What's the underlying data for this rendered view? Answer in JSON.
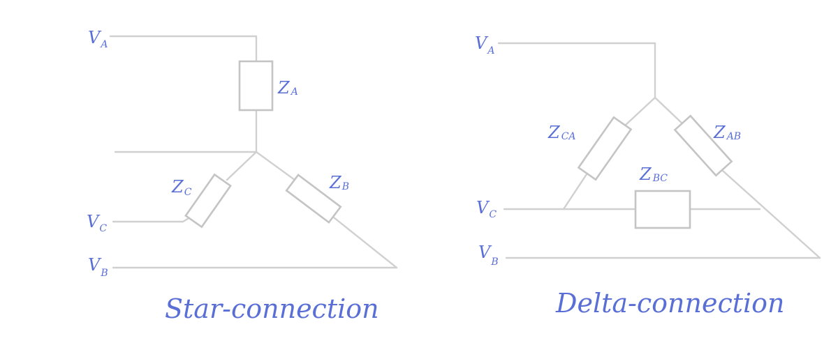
{
  "star": {
    "label_va": "V",
    "label_va_sub": "A",
    "label_vc": "V",
    "label_vc_sub": "C",
    "label_vb": "V",
    "label_vb_sub": "B",
    "label_za": "Z",
    "label_za_sub": "A",
    "label_zb": "Z",
    "label_zb_sub": "B",
    "label_zc": "Z",
    "label_zc_sub": "C",
    "caption": "Star-connection"
  },
  "delta": {
    "label_va": "V",
    "label_va_sub": "A",
    "label_vc": "V",
    "label_vc_sub": "C",
    "label_vb": "V",
    "label_vb_sub": "B",
    "label_zca": "Z",
    "label_zca_sub": "CA",
    "label_zab": "Z",
    "label_zab_sub": "AB",
    "label_zbc": "Z",
    "label_zbc_sub": "BC",
    "caption": "Delta-connection"
  },
  "colors": {
    "label": "#5a6fd6",
    "wire": "#d0d0d0"
  }
}
